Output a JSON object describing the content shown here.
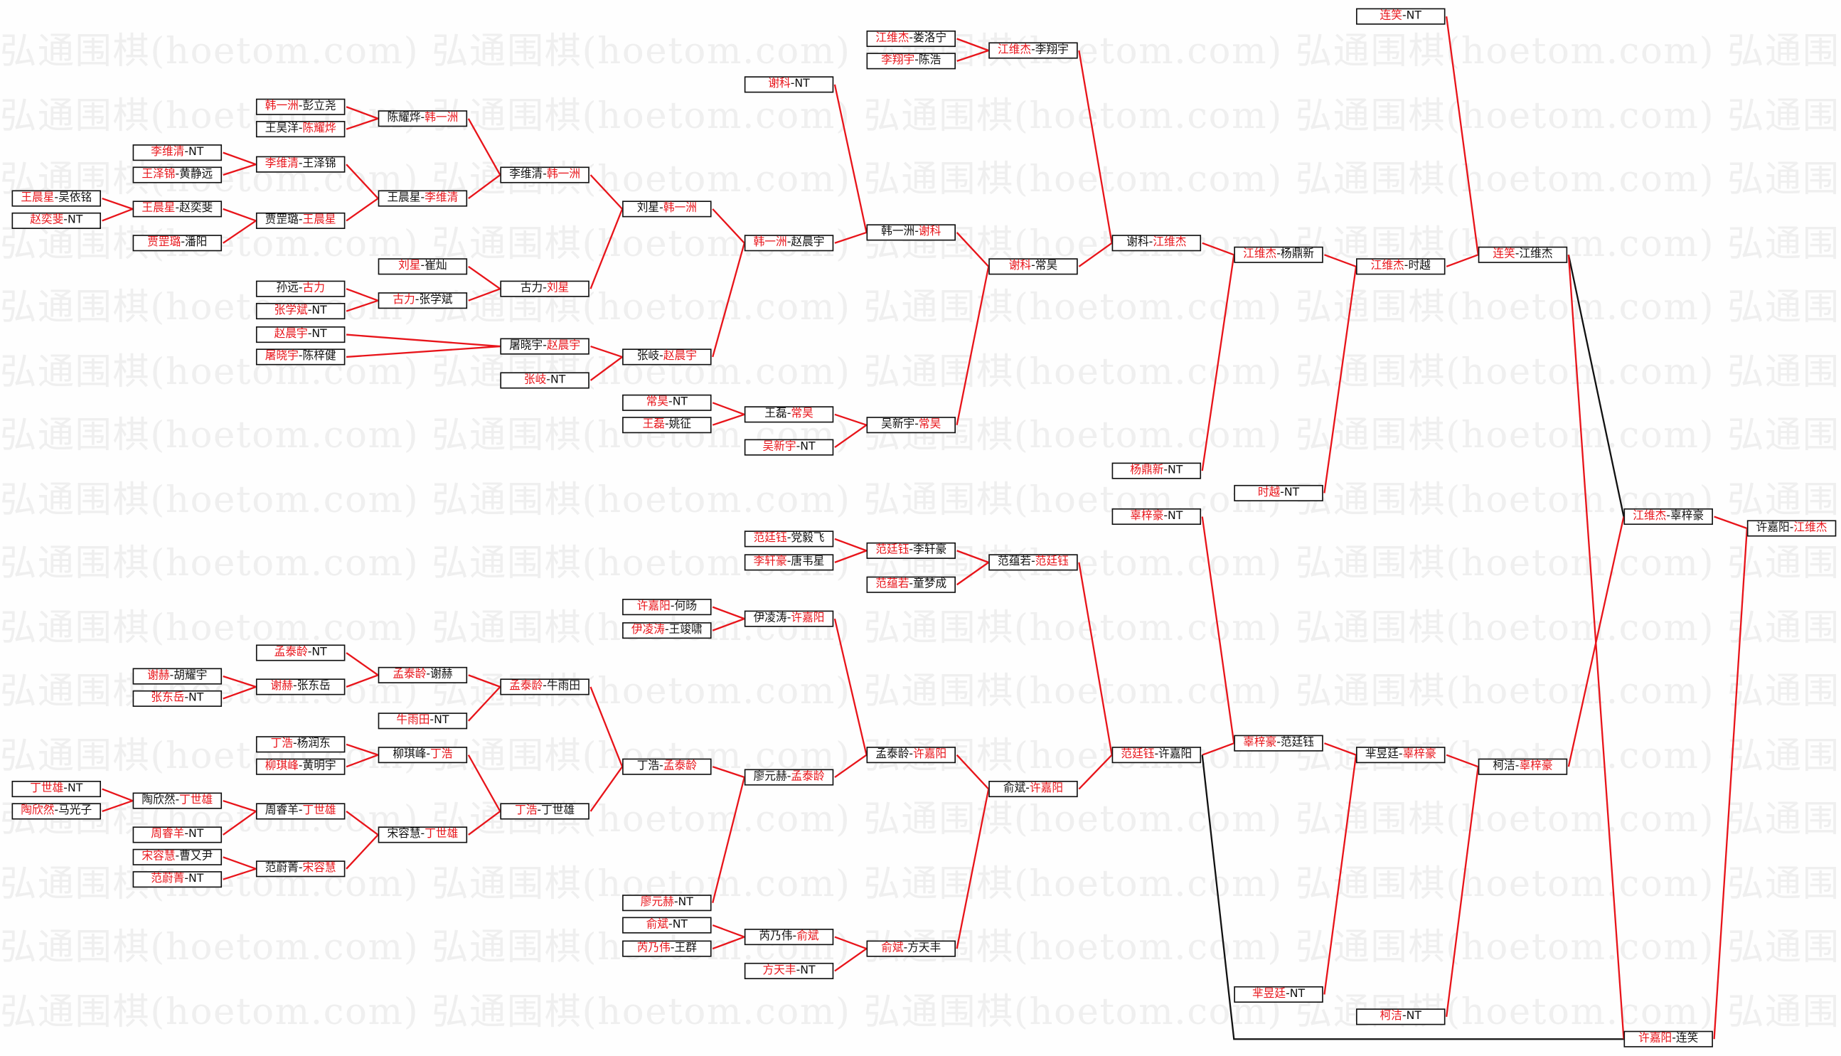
{
  "watermark": "弘通围棋(hoetom.com)",
  "colors": {
    "win_line": "#e8141a",
    "other_line": "#111111",
    "winner_text": "#e8141a"
  },
  "matches": [
    {
      "a": "王晨星",
      "b": "吴依铭",
      "red": "a"
    },
    {
      "a": "赵奕斐",
      "b": "NT",
      "red": "a"
    },
    {
      "a": "丁世雄",
      "b": "NT",
      "red": "a"
    },
    {
      "a": "陶欣然",
      "b": "马光子",
      "red": "a"
    },
    {
      "a": "李维清",
      "b": "NT",
      "red": "a"
    },
    {
      "a": "王泽锦",
      "b": "黄静远",
      "red": "a"
    },
    {
      "a": "王晨星",
      "b": "赵奕斐",
      "red": "a"
    },
    {
      "a": "贾罡璐",
      "b": "潘阳",
      "red": "a"
    },
    {
      "a": "谢赫",
      "b": "胡耀宇",
      "red": "a"
    },
    {
      "a": "张东岳",
      "b": "NT",
      "red": "a"
    },
    {
      "a": "陶欣然",
      "b": "丁世雄",
      "red": "b"
    },
    {
      "a": "周睿羊",
      "b": "NT",
      "red": "a"
    },
    {
      "a": "宋容慧",
      "b": "曹又尹",
      "red": "a"
    },
    {
      "a": "范蔚菁",
      "b": "NT",
      "red": "a"
    },
    {
      "a": "韩一洲",
      "b": "彭立尧",
      "red": "a"
    },
    {
      "a": "王昊洋",
      "b": "陈耀烨",
      "red": "b"
    },
    {
      "a": "李维清",
      "b": "王泽锦",
      "red": "a"
    },
    {
      "a": "贾罡璐",
      "b": "王晨星",
      "red": "b"
    },
    {
      "a": "孙远",
      "b": "古力",
      "red": "b"
    },
    {
      "a": "张学斌",
      "b": "NT",
      "red": "a"
    },
    {
      "a": "赵晨宇",
      "b": "NT",
      "red": "a"
    },
    {
      "a": "屠晓宇",
      "b": "陈梓健",
      "red": "a"
    },
    {
      "a": "孟泰龄",
      "b": "NT",
      "red": "a"
    },
    {
      "a": "谢赫",
      "b": "张东岳",
      "red": "a"
    },
    {
      "a": "丁浩",
      "b": "杨润东",
      "red": "a"
    },
    {
      "a": "柳琪峰",
      "b": "黄明宇",
      "red": "a"
    },
    {
      "a": "周睿羊",
      "b": "丁世雄",
      "red": "b"
    },
    {
      "a": "范蔚菁",
      "b": "宋容慧",
      "red": "b"
    },
    {
      "a": "陈耀烨",
      "b": "韩一洲",
      "red": "b"
    },
    {
      "a": "王晨星",
      "b": "李维清",
      "red": "b"
    },
    {
      "a": "刘星",
      "b": "崔灿",
      "red": "a"
    },
    {
      "a": "古力",
      "b": "张学斌",
      "red": "a"
    },
    {
      "a": "孟泰龄",
      "b": "谢赫",
      "red": "a"
    },
    {
      "a": "牛雨田",
      "b": "NT",
      "red": "a"
    },
    {
      "a": "柳琪峰",
      "b": "丁浩",
      "red": "b"
    },
    {
      "a": "宋容慧",
      "b": "丁世雄",
      "red": "b"
    },
    {
      "a": "李维清",
      "b": "韩一洲",
      "red": "b"
    },
    {
      "a": "古力",
      "b": "刘星",
      "red": "b"
    },
    {
      "a": "屠晓宇",
      "b": "赵晨宇",
      "red": "b"
    },
    {
      "a": "张岐",
      "b": "NT",
      "red": "a"
    },
    {
      "a": "孟泰龄",
      "b": "牛雨田",
      "red": "a"
    },
    {
      "a": "丁浩",
      "b": "丁世雄",
      "red": "a"
    },
    {
      "a": "刘星",
      "b": "韩一洲",
      "red": "b"
    },
    {
      "a": "张岐",
      "b": "赵晨宇",
      "red": "b"
    },
    {
      "a": "常昊",
      "b": "NT",
      "red": "a"
    },
    {
      "a": "王磊",
      "b": "姚征",
      "red": "a"
    },
    {
      "a": "许嘉阳",
      "b": "何旸",
      "red": "a"
    },
    {
      "a": "伊凌涛",
      "b": "王竣啸",
      "red": "a"
    },
    {
      "a": "丁浩",
      "b": "孟泰龄",
      "red": "b"
    },
    {
      "a": "廖元赫",
      "b": "NT",
      "red": "a"
    },
    {
      "a": "俞斌",
      "b": "NT",
      "red": "a"
    },
    {
      "a": "芮乃伟",
      "b": "王群",
      "red": "a"
    },
    {
      "a": "谢科",
      "b": "NT",
      "red": "a"
    },
    {
      "a": "韩一洲",
      "b": "赵晨宇",
      "red": "a"
    },
    {
      "a": "王磊",
      "b": "常昊",
      "red": "b"
    },
    {
      "a": "吴新宇",
      "b": "NT",
      "red": "a"
    },
    {
      "a": "范廷钰",
      "b": "党毅飞",
      "red": "a"
    },
    {
      "a": "李轩豪",
      "b": "唐韦星",
      "red": "a"
    },
    {
      "a": "伊凌涛",
      "b": "许嘉阳",
      "red": "b"
    },
    {
      "a": "廖元赫",
      "b": "孟泰龄",
      "red": "b"
    },
    {
      "a": "芮乃伟",
      "b": "俞斌",
      "red": "b"
    },
    {
      "a": "方天丰",
      "b": "NT",
      "red": "a"
    },
    {
      "a": "江维杰",
      "b": "娄洛宁",
      "red": "a"
    },
    {
      "a": "李翔宇",
      "b": "陈浩",
      "red": "a"
    },
    {
      "a": "韩一洲",
      "b": "谢科",
      "red": "b"
    },
    {
      "a": "吴新宇",
      "b": "常昊",
      "red": "b"
    },
    {
      "a": "范廷钰",
      "b": "李轩豪",
      "red": "a"
    },
    {
      "a": "范蕴若",
      "b": "童梦成",
      "red": "a"
    },
    {
      "a": "孟泰龄",
      "b": "许嘉阳",
      "red": "b"
    },
    {
      "a": "俞斌",
      "b": "方天丰",
      "red": "a"
    },
    {
      "a": "江维杰",
      "b": "李翔宇",
      "red": "a"
    },
    {
      "a": "谢科",
      "b": "常昊",
      "red": "a"
    },
    {
      "a": "范蕴若",
      "b": "范廷钰",
      "red": "b"
    },
    {
      "a": "俞斌",
      "b": "许嘉阳",
      "red": "b"
    },
    {
      "a": "谢科",
      "b": "江维杰",
      "red": "b"
    },
    {
      "a": "杨鼎新",
      "b": "NT",
      "red": "a"
    },
    {
      "a": "辜梓豪",
      "b": "NT",
      "red": "a"
    },
    {
      "a": "范廷钰",
      "b": "许嘉阳",
      "red": "a"
    },
    {
      "a": "江维杰",
      "b": "杨鼎新",
      "red": "a"
    },
    {
      "a": "时越",
      "b": "NT",
      "red": "a"
    },
    {
      "a": "辜梓豪",
      "b": "范廷钰",
      "red": "a"
    },
    {
      "a": "芈昱廷",
      "b": "NT",
      "red": "a"
    },
    {
      "a": "连笑",
      "b": "NT",
      "red": "a"
    },
    {
      "a": "江维杰",
      "b": "时越",
      "red": "a"
    },
    {
      "a": "芈昱廷",
      "b": "辜梓豪",
      "red": "b"
    },
    {
      "a": "柯洁",
      "b": "NT",
      "red": "a"
    },
    {
      "a": "连笑",
      "b": "江维杰",
      "red": "a"
    },
    {
      "a": "柯洁",
      "b": "辜梓豪",
      "red": "b"
    },
    {
      "a": "江维杰",
      "b": "辜梓豪",
      "red": "a"
    },
    {
      "a": "许嘉阳",
      "b": "连笑",
      "red": "a"
    },
    {
      "a": "许嘉阳",
      "b": "江维杰",
      "red": "b"
    }
  ],
  "edges": [
    [
      0,
      6,
      "red"
    ],
    [
      1,
      6,
      "red"
    ],
    [
      4,
      16,
      "red"
    ],
    [
      5,
      16,
      "red"
    ],
    [
      6,
      17,
      "red"
    ],
    [
      7,
      17,
      "red"
    ],
    [
      2,
      10,
      "red"
    ],
    [
      3,
      10,
      "red"
    ],
    [
      8,
      23,
      "red"
    ],
    [
      9,
      23,
      "red"
    ],
    [
      10,
      26,
      "red"
    ],
    [
      11,
      26,
      "red"
    ],
    [
      12,
      27,
      "red"
    ],
    [
      13,
      27,
      "red"
    ],
    [
      14,
      28,
      "red"
    ],
    [
      15,
      28,
      "red"
    ],
    [
      16,
      29,
      "red"
    ],
    [
      17,
      29,
      "red"
    ],
    [
      18,
      31,
      "red"
    ],
    [
      19,
      31,
      "red"
    ],
    [
      22,
      32,
      "red"
    ],
    [
      23,
      32,
      "red"
    ],
    [
      24,
      34,
      "red"
    ],
    [
      25,
      34,
      "red"
    ],
    [
      26,
      35,
      "red"
    ],
    [
      27,
      35,
      "red"
    ],
    [
      28,
      36,
      "red"
    ],
    [
      29,
      36,
      "red"
    ],
    [
      30,
      37,
      "red"
    ],
    [
      31,
      37,
      "red"
    ],
    [
      20,
      38,
      "red"
    ],
    [
      21,
      38,
      "red"
    ],
    [
      32,
      40,
      "red"
    ],
    [
      33,
      40,
      "red"
    ],
    [
      34,
      41,
      "red"
    ],
    [
      35,
      41,
      "red"
    ],
    [
      36,
      42,
      "red"
    ],
    [
      37,
      42,
      "red"
    ],
    [
      38,
      43,
      "red"
    ],
    [
      39,
      43,
      "red"
    ],
    [
      40,
      48,
      "red"
    ],
    [
      41,
      48,
      "red"
    ],
    [
      44,
      54,
      "red"
    ],
    [
      45,
      54,
      "red"
    ],
    [
      46,
      58,
      "red"
    ],
    [
      47,
      58,
      "red"
    ],
    [
      48,
      59,
      "red"
    ],
    [
      49,
      59,
      "red"
    ],
    [
      50,
      60,
      "red"
    ],
    [
      51,
      60,
      "red"
    ],
    [
      42,
      53,
      "red"
    ],
    [
      43,
      53,
      "red"
    ],
    [
      52,
      64,
      "red"
    ],
    [
      53,
      64,
      "red"
    ],
    [
      54,
      65,
      "red"
    ],
    [
      55,
      65,
      "red"
    ],
    [
      56,
      66,
      "red"
    ],
    [
      57,
      66,
      "red"
    ],
    [
      59,
      68,
      "red"
    ],
    [
      58,
      68,
      "red"
    ],
    [
      60,
      69,
      "red"
    ],
    [
      61,
      69,
      "red"
    ],
    [
      62,
      70,
      "red"
    ],
    [
      63,
      70,
      "red"
    ],
    [
      64,
      71,
      "red"
    ],
    [
      65,
      71,
      "red"
    ],
    [
      66,
      72,
      "red"
    ],
    [
      67,
      72,
      "red"
    ],
    [
      68,
      73,
      "red"
    ],
    [
      69,
      73,
      "red"
    ],
    [
      70,
      74,
      "red"
    ],
    [
      71,
      74,
      "red"
    ],
    [
      72,
      77,
      "red"
    ],
    [
      73,
      77,
      "red"
    ],
    [
      74,
      78,
      "red"
    ],
    [
      75,
      78,
      "red"
    ],
    [
      76,
      80,
      "red"
    ],
    [
      77,
      80,
      "red"
    ],
    [
      78,
      83,
      "red"
    ],
    [
      79,
      83,
      "red"
    ],
    [
      80,
      84,
      "red"
    ],
    [
      81,
      84,
      "red"
    ],
    [
      82,
      86,
      "red"
    ],
    [
      83,
      86,
      "red"
    ],
    [
      84,
      87,
      "red"
    ],
    [
      85,
      87,
      "red"
    ],
    [
      86,
      88,
      "black"
    ],
    [
      87,
      88,
      "red"
    ],
    [
      77,
      89,
      "black"
    ],
    [
      86,
      89,
      "red"
    ],
    [
      88,
      90,
      "red"
    ],
    [
      89,
      90,
      "red"
    ]
  ]
}
